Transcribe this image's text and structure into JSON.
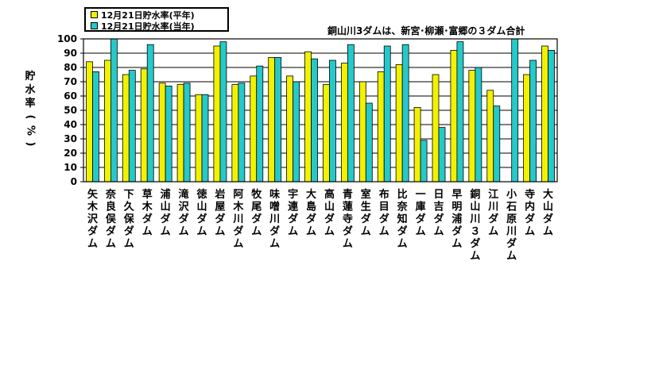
{
  "chart_data": {
    "type": "bar",
    "note": "銅山川3ダムは、新宮･柳瀬･富郷の３ダム合計",
    "ylabel": "貯水率(%)",
    "ylim": [
      0,
      100
    ],
    "yticks": [
      0,
      10,
      20,
      30,
      40,
      50,
      60,
      70,
      80,
      90,
      100
    ],
    "grid": true,
    "legend_position": "top-left",
    "categories": [
      "矢木沢ダム",
      "奈良俣ダム",
      "下久保ダム",
      "草木ダム",
      "浦山ダム",
      "滝沢ダム",
      "徳山ダム",
      "岩屋ダム",
      "阿木川ダム",
      "牧尾ダム",
      "味噌川ダム",
      "宇連ダム",
      "大島ダム",
      "高山ダム",
      "青蓮寺ダム",
      "室生ダム",
      "布目ダム",
      "比奈知ダム",
      "一庫ダム",
      "日吉ダム",
      "早明浦ダム",
      "銅山川３ダム",
      "江川ダム",
      "小石原川ダム",
      "寺内ダム",
      "大山ダム"
    ],
    "series": [
      {
        "name": "12月21日貯水率(平年)",
        "color": "#f2f200",
        "values": [
          84,
          85,
          75,
          79,
          69,
          68,
          61,
          95,
          68,
          74,
          87,
          74,
          91,
          68,
          83,
          70,
          77,
          82,
          52,
          75,
          92,
          78,
          64,
          null,
          75,
          95
        ]
      },
      {
        "name": "12月21日貯水率(当年)",
        "color": "#26c9c9",
        "values": [
          77,
          100,
          78,
          96,
          67,
          69,
          61,
          98,
          69,
          81,
          87,
          70,
          86,
          85,
          96,
          55,
          95,
          96,
          29,
          38,
          98,
          80,
          53,
          100,
          85,
          92
        ]
      }
    ]
  }
}
